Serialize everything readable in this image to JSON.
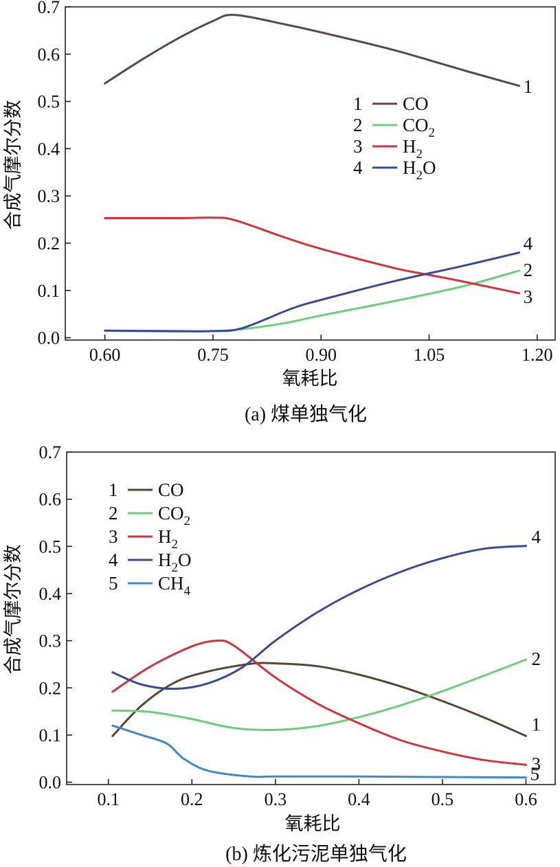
{
  "chart_data": [
    {
      "id": "a",
      "type": "line",
      "caption": "(a) 煤单独气化",
      "xlabel": "氧耗比",
      "ylabel": "合成气摩尔分数",
      "xlim": [
        0.545,
        1.225
      ],
      "ylim": [
        -0.005,
        0.7
      ],
      "xticks": [
        0.6,
        0.75,
        0.9,
        1.05,
        1.2
      ],
      "xtick_labels": [
        "0.60",
        "0.75",
        "0.90",
        "1.05",
        "1.20"
      ],
      "yticks": [
        0.0,
        0.1,
        0.2,
        0.3,
        0.4,
        0.5,
        0.6,
        0.7
      ],
      "ytick_labels": [
        "0.0",
        "0.1",
        "0.2",
        "0.3",
        "0.4",
        "0.5",
        "0.6",
        "0.7"
      ],
      "legend_position": "upper-right",
      "series": [
        {
          "num": "1",
          "name": "CO",
          "sub": "",
          "color": "#5a4552",
          "x": [
            0.6,
            0.65,
            0.7,
            0.75,
            0.78,
            0.85,
            0.9,
            1.0,
            1.1,
            1.175
          ],
          "y": [
            0.538,
            0.587,
            0.632,
            0.67,
            0.683,
            0.663,
            0.646,
            0.609,
            0.565,
            0.533
          ]
        },
        {
          "num": "2",
          "name": "CO",
          "sub": "2",
          "color": "#6ccf78",
          "x": [
            0.6,
            0.7,
            0.75,
            0.79,
            0.85,
            0.9,
            1.0,
            1.1,
            1.175
          ],
          "y": [
            0.015,
            0.013,
            0.014,
            0.018,
            0.031,
            0.047,
            0.077,
            0.11,
            0.142
          ]
        },
        {
          "num": "3",
          "name": "H",
          "sub": "2",
          "color": "#d6323c",
          "x": [
            0.6,
            0.7,
            0.75,
            0.78,
            0.85,
            0.9,
            1.0,
            1.05,
            1.1,
            1.175
          ],
          "y": [
            0.253,
            0.253,
            0.254,
            0.249,
            0.212,
            0.188,
            0.148,
            0.133,
            0.118,
            0.094
          ]
        },
        {
          "num": "4",
          "name": "H",
          "sub": "2",
          "suffix": "O",
          "color": "#3a4a98",
          "x": [
            0.6,
            0.7,
            0.75,
            0.79,
            0.86,
            0.9,
            1.0,
            1.1,
            1.175
          ],
          "y": [
            0.015,
            0.014,
            0.014,
            0.02,
            0.062,
            0.08,
            0.119,
            0.153,
            0.18
          ]
        }
      ]
    },
    {
      "id": "b",
      "type": "line",
      "caption": "(b) 炼化污泥单独气化",
      "xlabel": "氧耗比",
      "ylabel": "合成气摩尔分数",
      "xlim": [
        0.05,
        0.635
      ],
      "ylim": [
        -0.005,
        0.7
      ],
      "xticks": [
        0.1,
        0.2,
        0.3,
        0.4,
        0.5,
        0.6
      ],
      "xtick_labels": [
        "0.1",
        "0.2",
        "0.3",
        "0.4",
        "0.5",
        "0.6"
      ],
      "yticks": [
        0.0,
        0.1,
        0.2,
        0.3,
        0.4,
        0.5,
        0.6,
        0.7
      ],
      "ytick_labels": [
        "0.0",
        "0.1",
        "0.2",
        "0.3",
        "0.4",
        "0.5",
        "0.6",
        "0.7"
      ],
      "legend_position": "upper-left",
      "series": [
        {
          "num": "1",
          "name": "CO",
          "sub": "",
          "color": "#5a4535",
          "x": [
            0.105,
            0.14,
            0.18,
            0.22,
            0.27,
            0.3,
            0.35,
            0.4,
            0.45,
            0.5,
            0.55,
            0.6
          ],
          "y": [
            0.098,
            0.163,
            0.212,
            0.235,
            0.251,
            0.252,
            0.246,
            0.228,
            0.203,
            0.172,
            0.137,
            0.098
          ]
        },
        {
          "num": "2",
          "name": "CO",
          "sub": "2",
          "color": "#6ccf78",
          "x": [
            0.105,
            0.15,
            0.2,
            0.25,
            0.3,
            0.35,
            0.4,
            0.45,
            0.5,
            0.55,
            0.6
          ],
          "y": [
            0.152,
            0.149,
            0.134,
            0.115,
            0.111,
            0.119,
            0.138,
            0.163,
            0.193,
            0.226,
            0.26
          ]
        },
        {
          "num": "3",
          "name": "H",
          "sub": "2",
          "color": "#d6323c",
          "x": [
            0.105,
            0.15,
            0.2,
            0.23,
            0.25,
            0.3,
            0.35,
            0.4,
            0.45,
            0.5,
            0.55,
            0.6
          ],
          "y": [
            0.192,
            0.245,
            0.288,
            0.3,
            0.29,
            0.222,
            0.167,
            0.125,
            0.089,
            0.065,
            0.047,
            0.037
          ]
        },
        {
          "num": "4",
          "name": "H",
          "sub": "2",
          "suffix": "O",
          "color": "#3a4a98",
          "x": [
            0.105,
            0.14,
            0.18,
            0.22,
            0.26,
            0.3,
            0.35,
            0.4,
            0.45,
            0.5,
            0.55,
            0.6
          ],
          "y": [
            0.233,
            0.207,
            0.198,
            0.21,
            0.243,
            0.3,
            0.36,
            0.408,
            0.446,
            0.475,
            0.495,
            0.501
          ]
        },
        {
          "num": "5",
          "name": "CH",
          "sub": "4",
          "color": "#3f8ac6",
          "x": [
            0.105,
            0.14,
            0.17,
            0.19,
            0.22,
            0.27,
            0.3,
            0.4,
            0.5,
            0.6
          ],
          "y": [
            0.12,
            0.1,
            0.082,
            0.05,
            0.024,
            0.012,
            0.012,
            0.012,
            0.011,
            0.01
          ]
        }
      ]
    }
  ]
}
